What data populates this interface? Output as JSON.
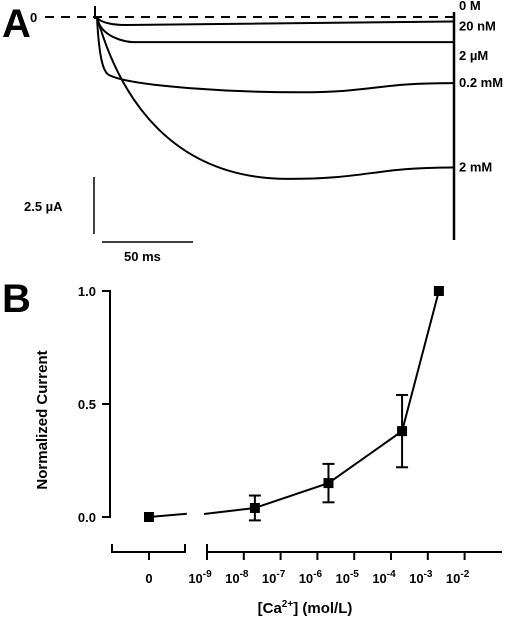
{
  "panels": {
    "a_letter": "A",
    "b_letter": "B"
  },
  "chart_data": [
    {
      "type": "line",
      "panel": "A",
      "baseline_label": "0",
      "x_unit": "ms",
      "y_unit": "µA",
      "series": [
        {
          "name": "0 M",
          "end_current": 0.0,
          "peak_current": 0.0,
          "peak_time": 0,
          "label_dx": 1,
          "label_dy": -7
        },
        {
          "name": "20 nM",
          "end_current": -0.2,
          "peak_current": -0.35,
          "peak_time": 15,
          "label_dx": 1,
          "label_dy": 9
        },
        {
          "name": "2 µM",
          "end_current": -1.1,
          "peak_current": -1.1,
          "peak_time": 20,
          "label_dx": 1,
          "label_dy": 18
        },
        {
          "name": "0.2 mM",
          "end_current": -2.9,
          "peak_current": -3.3,
          "peak_time": 110,
          "label_dx": 1,
          "label_dy": 4
        },
        {
          "name": "2 mM",
          "end_current": -6.6,
          "peak_current": -7.1,
          "peak_time": 105,
          "label_dx": 1,
          "label_dy": 4
        }
      ],
      "scale_bar": {
        "current_value": 2.5,
        "current_label": "2.5 µA",
        "time_value": 50,
        "time_label": "50 ms"
      }
    },
    {
      "type": "scatter",
      "panel": "B",
      "ylabel": "Normalized Current",
      "xlabel_main": "[Ca",
      "xlabel_sup": "2+",
      "xlabel_tail": "] (mol/L)",
      "ylim": [
        0,
        1.0
      ],
      "y_ticks": [
        {
          "value": 0.0,
          "label": "0.0"
        },
        {
          "value": 0.5,
          "label": "0.5"
        },
        {
          "value": 1.0,
          "label": "1.0"
        }
      ],
      "x_scale": "log",
      "x_ticks_log": [
        {
          "exp": -9,
          "base": "10",
          "sup": "-9"
        },
        {
          "exp": -8,
          "base": "10",
          "sup": "-8"
        },
        {
          "exp": -7,
          "base": "10",
          "sup": "-7"
        },
        {
          "exp": -6,
          "base": "10",
          "sup": "-6"
        },
        {
          "exp": -5,
          "base": "10",
          "sup": "-5"
        },
        {
          "exp": -4,
          "base": "10",
          "sup": "-4"
        },
        {
          "exp": -3,
          "base": "10",
          "sup": "-3"
        },
        {
          "exp": -2,
          "base": "10",
          "sup": "-2"
        }
      ],
      "x_zero_tick": "0",
      "points": [
        {
          "conc": 0,
          "current": 0.0,
          "error": 0.01
        },
        {
          "conc": 2e-08,
          "current": 0.04,
          "error": 0.055
        },
        {
          "conc": 2e-06,
          "current": 0.15,
          "error": 0.085
        },
        {
          "conc": 0.0002,
          "current": 0.38,
          "error": 0.16
        },
        {
          "conc": 0.002,
          "current": 1.0,
          "error": 0.0
        }
      ]
    }
  ]
}
